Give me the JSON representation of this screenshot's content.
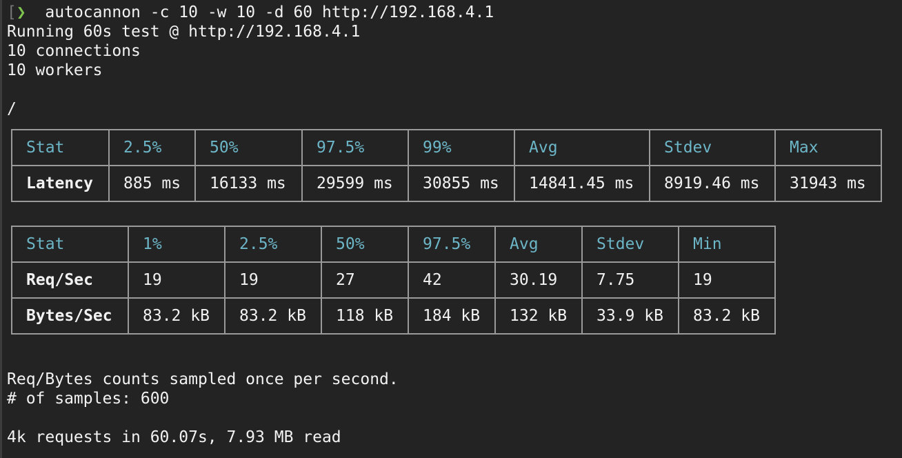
{
  "terminal": {
    "command": "autocannon -c 10 -w 10 -d 60 http://192.168.4.1",
    "lines": [
      "Running 60s test @ http://192.168.4.1",
      "10 connections",
      "10 workers",
      "",
      "/"
    ],
    "footer": [
      "Req/Bytes counts sampled once per second.",
      "# of samples: 600",
      "",
      "4k requests in 60.07s, 7.93 MB read"
    ],
    "prompt_icon": "chevron-right-icon",
    "colors": {
      "background": "#232323",
      "header": "#6cb6c8",
      "prompt": "#7ec44f",
      "border": "#9a9a9a"
    }
  },
  "latency_table": {
    "headers": [
      "Stat",
      "2.5%",
      "50%",
      "97.5%",
      "99%",
      "Avg",
      "Stdev",
      "Max"
    ],
    "rows": [
      [
        "Latency",
        "885 ms",
        "16133 ms",
        "29599 ms",
        "30855 ms",
        "14841.45 ms",
        "8919.46 ms",
        "31943 ms"
      ]
    ]
  },
  "throughput_table": {
    "headers": [
      "Stat",
      "1%",
      "2.5%",
      "50%",
      "97.5%",
      "Avg",
      "Stdev",
      "Min"
    ],
    "rows": [
      [
        "Req/Sec",
        "19",
        "19",
        "27",
        "42",
        "30.19",
        "7.75",
        "19"
      ],
      [
        "Bytes/Sec",
        "83.2 kB",
        "83.2 kB",
        "118 kB",
        "184 kB",
        "132 kB",
        "33.9 kB",
        "83.2 kB"
      ]
    ]
  }
}
